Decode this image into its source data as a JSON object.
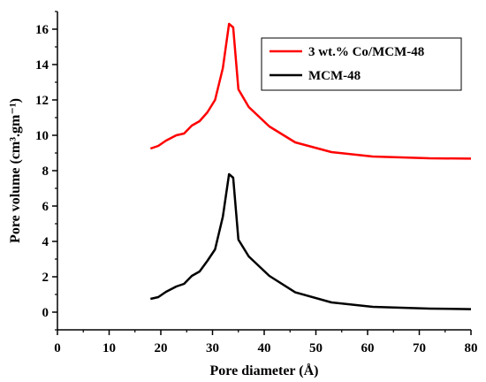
{
  "chart_data": {
    "type": "line",
    "xlabel": "Pore  diameter (Å)",
    "ylabel": "Pore volume (cm³.gm⁻¹)",
    "xlim": [
      0,
      80
    ],
    "ylim": [
      -1,
      17
    ],
    "x_ticks": [
      0,
      10,
      20,
      30,
      40,
      50,
      60,
      70,
      80
    ],
    "y_ticks": [
      0,
      2,
      4,
      6,
      8,
      10,
      12,
      14,
      16
    ],
    "x_tick_labels": [
      "0",
      "10",
      "20",
      "30",
      "40",
      "50",
      "60",
      "70",
      "80"
    ],
    "y_tick_labels": [
      "0",
      "2",
      "4",
      "6",
      "8",
      "10",
      "12",
      "14",
      "16"
    ],
    "grid": false,
    "legend_position": "top-right",
    "series": [
      {
        "name": "3 wt.% Co/MCM-48",
        "color": "#ff0000",
        "points": [
          [
            18,
            9.25
          ],
          [
            19.5,
            9.4
          ],
          [
            21,
            9.7
          ],
          [
            23,
            10.0
          ],
          [
            24.5,
            10.1
          ],
          [
            26,
            10.55
          ],
          [
            27.5,
            10.8
          ],
          [
            29,
            11.3
          ],
          [
            30.5,
            12.0
          ],
          [
            32,
            13.8
          ],
          [
            33.2,
            16.3
          ],
          [
            34,
            16.1
          ],
          [
            35,
            12.6
          ],
          [
            37,
            11.6
          ],
          [
            41,
            10.5
          ],
          [
            46,
            9.6
          ],
          [
            53,
            9.05
          ],
          [
            61,
            8.8
          ],
          [
            72,
            8.7
          ],
          [
            80,
            8.68
          ]
        ]
      },
      {
        "name": "MCM-48",
        "color": "#000000",
        "points": [
          [
            18,
            0.75
          ],
          [
            19.5,
            0.85
          ],
          [
            21,
            1.15
          ],
          [
            23,
            1.45
          ],
          [
            24.5,
            1.6
          ],
          [
            26,
            2.05
          ],
          [
            27.5,
            2.3
          ],
          [
            29,
            2.9
          ],
          [
            30.5,
            3.55
          ],
          [
            32,
            5.4
          ],
          [
            33.2,
            7.8
          ],
          [
            34,
            7.6
          ],
          [
            35,
            4.1
          ],
          [
            37,
            3.15
          ],
          [
            41,
            2.05
          ],
          [
            46,
            1.12
          ],
          [
            53,
            0.55
          ],
          [
            61,
            0.3
          ],
          [
            72,
            0.2
          ],
          [
            80,
            0.17
          ]
        ]
      }
    ]
  }
}
